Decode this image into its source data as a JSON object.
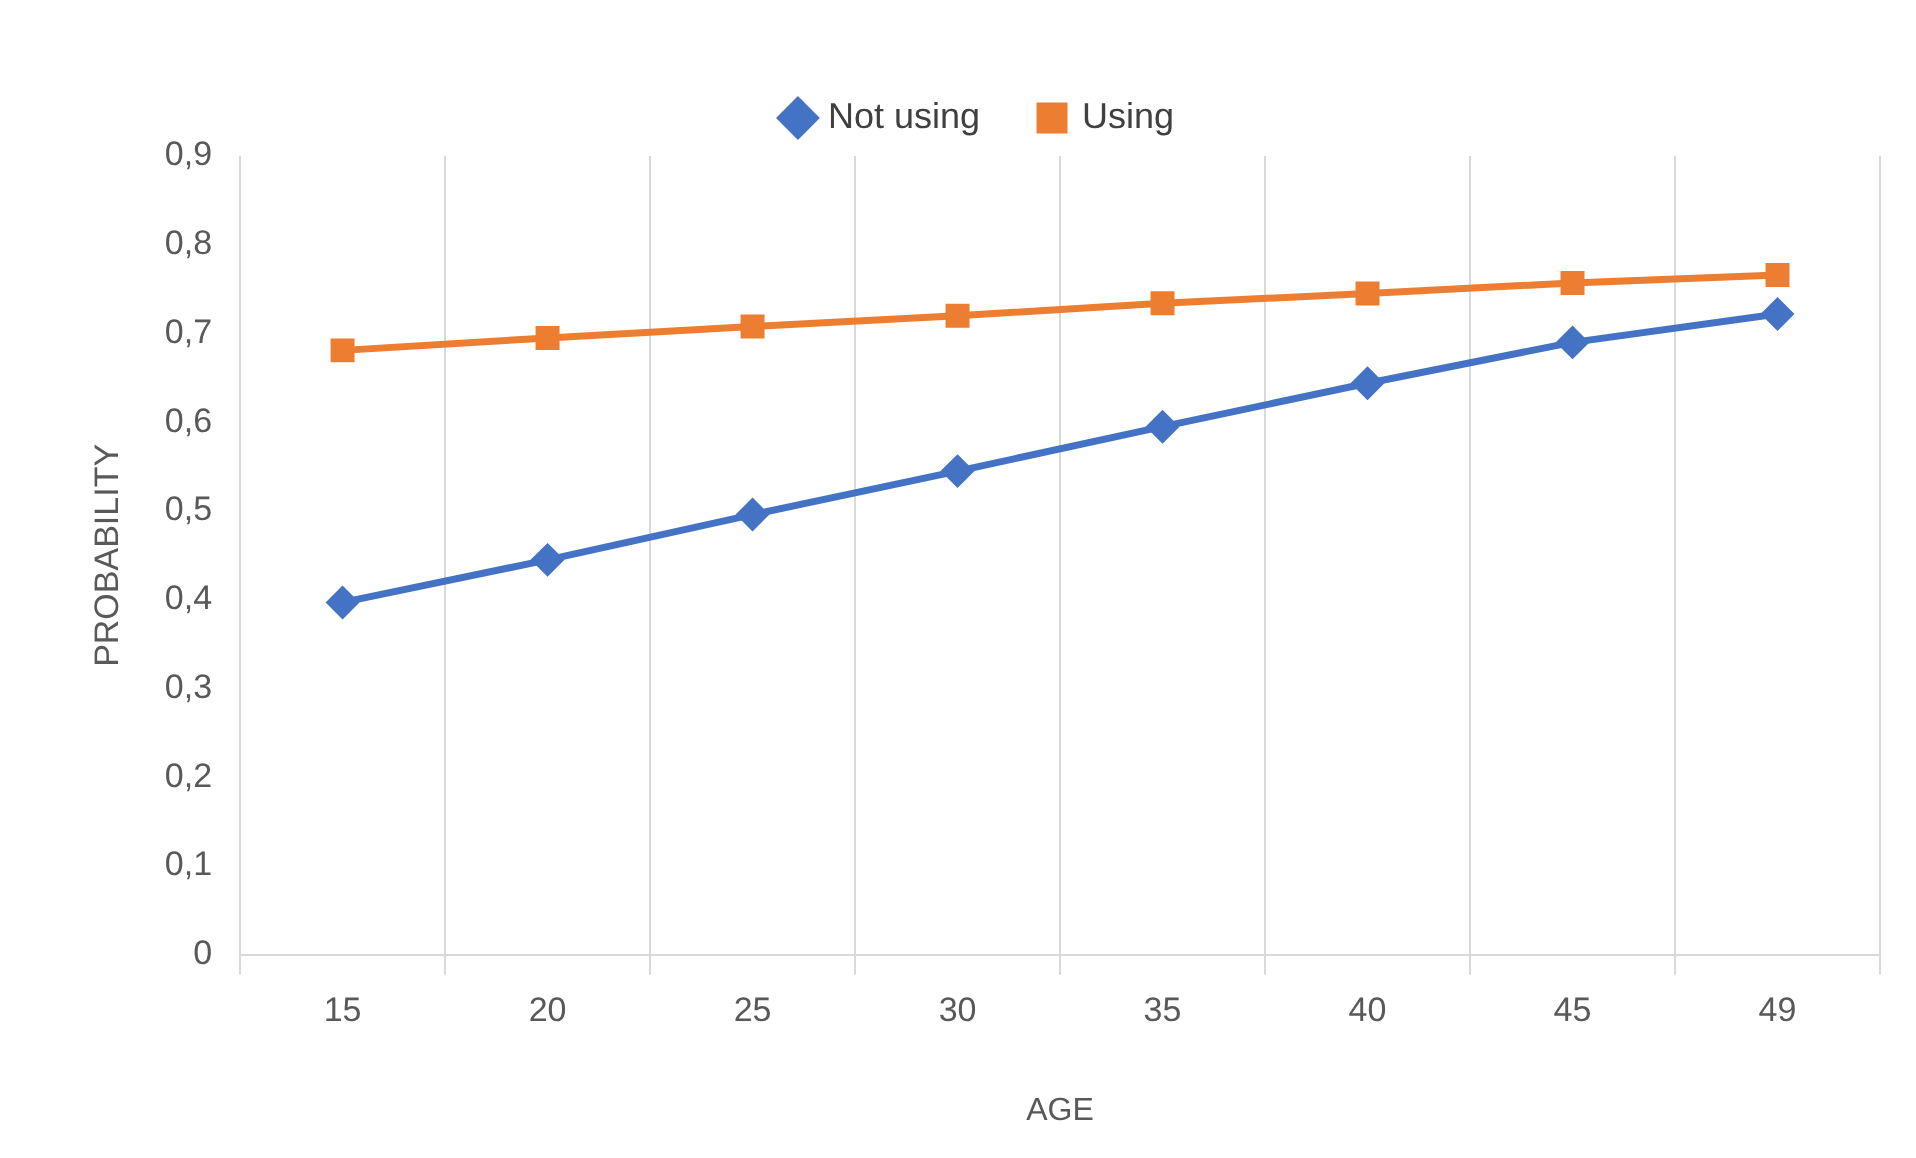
{
  "chart_data": {
    "type": "line",
    "xlabel": "AGE",
    "ylabel": "PROBABILITY",
    "categories": [
      "15",
      "20",
      "25",
      "30",
      "35",
      "40",
      "45",
      "49"
    ],
    "series": [
      {
        "name": "Not using",
        "color": "#4472c4",
        "marker": "diamond",
        "values": [
          0.397,
          0.445,
          0.496,
          0.545,
          0.595,
          0.644,
          0.69,
          0.722
        ]
      },
      {
        "name": "Using",
        "color": "#ed7d31",
        "marker": "square",
        "values": [
          0.681,
          0.695,
          0.708,
          0.72,
          0.734,
          0.745,
          0.757,
          0.766
        ]
      }
    ],
    "ylim": [
      0,
      0.9
    ],
    "yticks": [
      0,
      {
        "value": 0.1,
        "label": "0,1"
      },
      {
        "value": 0.2,
        "label": "0,2"
      },
      {
        "value": 0.3,
        "label": "0,3"
      },
      {
        "value": 0.4,
        "label": "0,4"
      },
      {
        "value": 0.5,
        "label": "0,5"
      },
      {
        "value": 0.6,
        "label": "0,6"
      },
      {
        "value": 0.7,
        "label": "0,7"
      },
      {
        "value": 0.8,
        "label": "0,8"
      },
      {
        "value": 0.9,
        "label": "0,9"
      }
    ],
    "grid": "x",
    "legend": "top",
    "line_style": "solid"
  }
}
